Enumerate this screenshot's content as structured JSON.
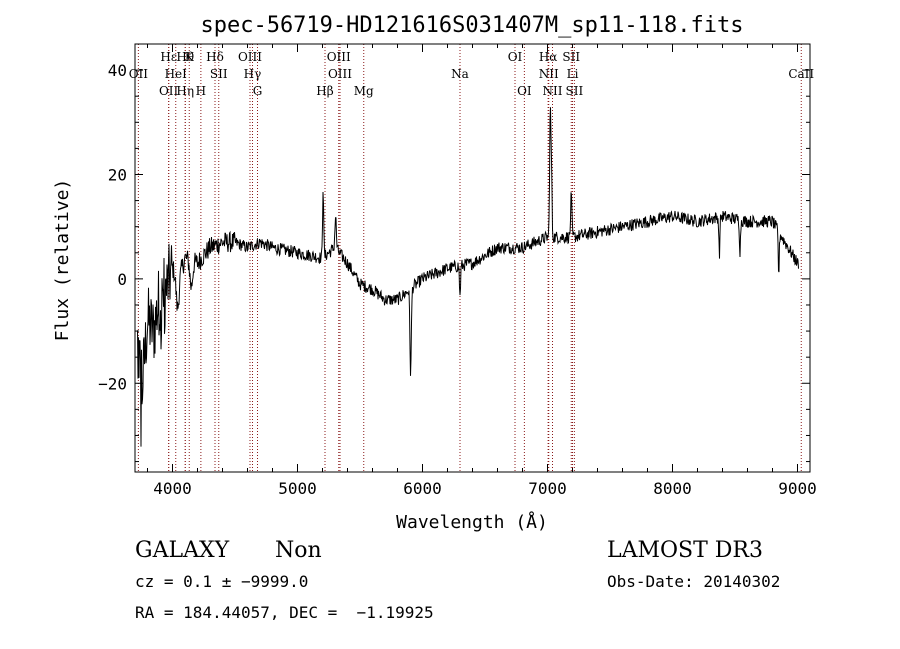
{
  "chart_data": {
    "type": "line",
    "title": "spec-56719-HD121616S031407M_sp11-118.fits",
    "xlabel": "Wavelength (Å)",
    "ylabel": "Flux (relative)",
    "xlim": [
      3700,
      9100
    ],
    "ylim": [
      -37,
      45
    ],
    "xticks": [
      {
        "v": 4000,
        "label": "4000"
      },
      {
        "v": 5000,
        "label": "5000"
      },
      {
        "v": 6000,
        "label": "6000"
      },
      {
        "v": 7000,
        "label": "7000"
      },
      {
        "v": 8000,
        "label": "8000"
      },
      {
        "v": 9000,
        "label": "9000"
      }
    ],
    "yticks": [
      {
        "v": -20,
        "label": "−20"
      },
      {
        "v": 0,
        "label": "0"
      },
      {
        "v": 20,
        "label": "20"
      },
      {
        "v": 40,
        "label": "40"
      }
    ],
    "line_color": "#000000",
    "marker_color": "#8b1a1a",
    "lines": [
      {
        "x": 3727,
        "label": "OII",
        "row": 1
      },
      {
        "x": 3969,
        "label": "OII",
        "row": 2
      },
      {
        "x": 3970,
        "label": "Hε",
        "row": 0
      },
      {
        "x": 4102,
        "label": "Hη",
        "row": 2
      },
      {
        "x": 4102,
        "label": "Hθ",
        "row": 0
      },
      {
        "x": 4026,
        "label": "HeI",
        "row": 1
      },
      {
        "x": 4134,
        "label": "K",
        "row": 0
      },
      {
        "x": 4227,
        "label": "H",
        "row": 2
      },
      {
        "x": 4340,
        "label": "Hδ",
        "row": 0
      },
      {
        "x": 4370,
        "label": "SII",
        "row": 1
      },
      {
        "x": 4620,
        "label": "OIII",
        "row": 0
      },
      {
        "x": 4640,
        "label": "Hγ",
        "row": 1
      },
      {
        "x": 4680,
        "label": "G",
        "row": 2
      },
      {
        "x": 5220,
        "label": "Hβ",
        "row": 2
      },
      {
        "x": 5330,
        "label": "OIII",
        "row": 0
      },
      {
        "x": 5340,
        "label": "OIII",
        "row": 1
      },
      {
        "x": 5530,
        "label": "Mg",
        "row": 2
      },
      {
        "x": 6300,
        "label": "Na",
        "row": 1
      },
      {
        "x": 6740,
        "label": "OI",
        "row": 0
      },
      {
        "x": 6815,
        "label": "OI",
        "row": 2
      },
      {
        "x": 7005,
        "label": "Hα",
        "row": 0
      },
      {
        "x": 7010,
        "label": "NII",
        "row": 1
      },
      {
        "x": 7040,
        "label": "NII",
        "row": 2
      },
      {
        "x": 7190,
        "label": "SII",
        "row": 0
      },
      {
        "x": 7200,
        "label": "Li",
        "row": 1
      },
      {
        "x": 7215,
        "label": "SII",
        "row": 2
      },
      {
        "x": 9030,
        "label": "CaII",
        "row": 1
      }
    ],
    "spectrum_anchors": [
      [
        3720,
        -12
      ],
      [
        3760,
        -20
      ],
      [
        3800,
        -8
      ],
      [
        3850,
        -10
      ],
      [
        3900,
        -3
      ],
      [
        3950,
        -2
      ],
      [
        4000,
        2
      ],
      [
        4050,
        0
      ],
      [
        4100,
        4
      ],
      [
        4200,
        3
      ],
      [
        4300,
        6
      ],
      [
        4400,
        7
      ],
      [
        4500,
        7
      ],
      [
        4600,
        6
      ],
      [
        4700,
        7
      ],
      [
        4800,
        6
      ],
      [
        5000,
        5
      ],
      [
        5200,
        4
      ],
      [
        5300,
        6
      ],
      [
        5400,
        3
      ],
      [
        5500,
        -1
      ],
      [
        5600,
        -2
      ],
      [
        5700,
        -4
      ],
      [
        5800,
        -4
      ],
      [
        5900,
        -2
      ],
      [
        6000,
        0
      ],
      [
        6100,
        1
      ],
      [
        6200,
        2
      ],
      [
        6400,
        3
      ],
      [
        6600,
        6
      ],
      [
        6800,
        6
      ],
      [
        7000,
        8
      ],
      [
        7200,
        8
      ],
      [
        7400,
        9
      ],
      [
        7600,
        10
      ],
      [
        7800,
        11
      ],
      [
        8000,
        12
      ],
      [
        8200,
        11
      ],
      [
        8400,
        12
      ],
      [
        8600,
        11
      ],
      [
        8800,
        11
      ],
      [
        9000,
        3
      ]
    ],
    "spectrum_features": [
      {
        "x": 4040,
        "amp": -6,
        "w": 15
      },
      {
        "x": 4150,
        "amp": -5,
        "w": 15
      },
      {
        "x": 5205,
        "amp": 14,
        "w": 6
      },
      {
        "x": 5305,
        "amp": 6,
        "w": 8
      },
      {
        "x": 5905,
        "amp": -16,
        "w": 8
      },
      {
        "x": 6300,
        "amp": -6,
        "w": 6
      },
      {
        "x": 7022,
        "amp": 24,
        "w": 7
      },
      {
        "x": 7032,
        "amp": 12,
        "w": 6
      },
      {
        "x": 7190,
        "amp": 8,
        "w": 7
      },
      {
        "x": 8375,
        "amp": -7,
        "w": 6
      },
      {
        "x": 8540,
        "amp": -6,
        "w": 6
      },
      {
        "x": 8850,
        "amp": -8,
        "w": 6
      }
    ]
  },
  "info": {
    "class_label": "GALAXY",
    "subclass": "Non",
    "survey": "LAMOST DR3",
    "cz_line": "cz = 0.1 ± −9999.0",
    "obs_date": "Obs-Date: 20140302",
    "radec": "RA = 184.44057, DEC =  −1.19925"
  }
}
